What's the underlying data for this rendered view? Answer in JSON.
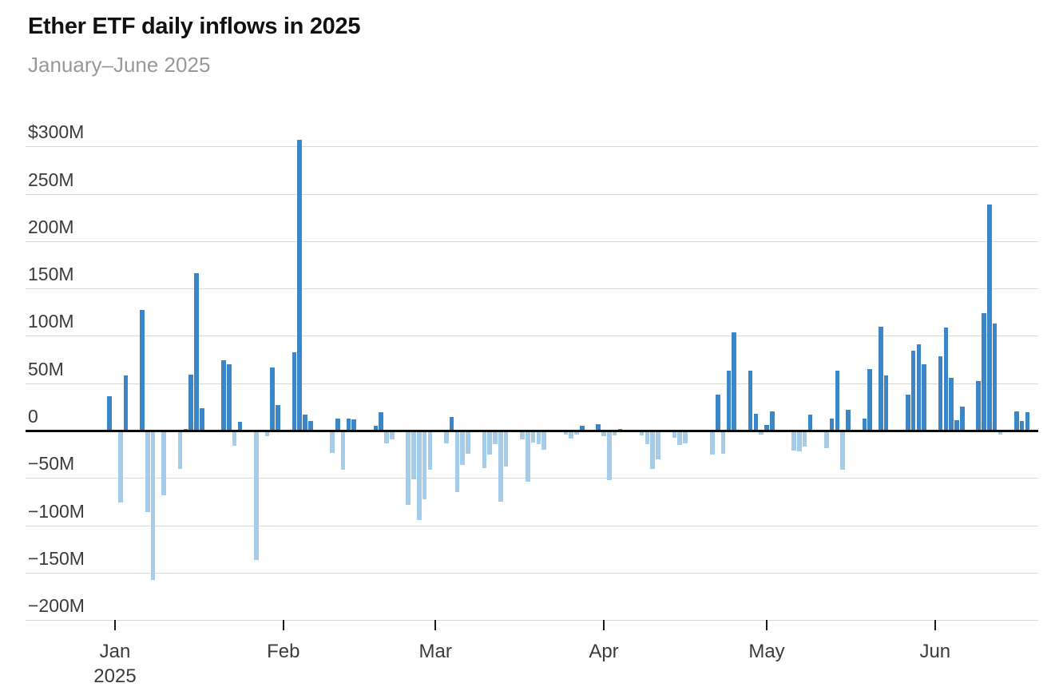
{
  "header": {
    "title": "Ether ETF daily inflows in 2025",
    "subtitle": "January–June 2025"
  },
  "chart_data": {
    "type": "bar",
    "title": "Ether ETF daily inflows in 2025",
    "subtitle": "January–June 2025",
    "unit": "millions of US dollars per day",
    "ylim": [
      -200,
      300
    ],
    "grid": "horizontal",
    "legend": "none",
    "colors": {
      "positive_bar": "#3b86c6",
      "negative_bar": "#a5cdea",
      "zero_line": "#0a0a0a",
      "gridline": "#d9d9d9",
      "title_text": "#111111",
      "subtitle_text": "#989898",
      "axis_text": "#3b3b3b"
    },
    "y_axis": {
      "ticks": [
        {
          "value": 300,
          "label": "$300M"
        },
        {
          "value": 250,
          "label": "250M"
        },
        {
          "value": 200,
          "label": "200M"
        },
        {
          "value": 150,
          "label": "150M"
        },
        {
          "value": 100,
          "label": "100M"
        },
        {
          "value": 50,
          "label": "50M"
        },
        {
          "value": 0,
          "label": "0"
        },
        {
          "value": -50,
          "label": "−50M"
        },
        {
          "value": -100,
          "label": "−100M"
        },
        {
          "value": -150,
          "label": "−150M"
        },
        {
          "value": -200,
          "label": "−200M"
        }
      ]
    },
    "x_axis": {
      "ticks": [
        {
          "date": "2025-01-01",
          "label": "Jan",
          "sublabel": "2025"
        },
        {
          "date": "2025-02-01",
          "label": "Feb",
          "sublabel": ""
        },
        {
          "date": "2025-03-01",
          "label": "Mar",
          "sublabel": ""
        },
        {
          "date": "2025-04-01",
          "label": "Apr",
          "sublabel": ""
        },
        {
          "date": "2025-05-01",
          "label": "May",
          "sublabel": ""
        },
        {
          "date": "2025-06-01",
          "label": "Jun",
          "sublabel": ""
        }
      ]
    },
    "columns": [
      "date",
      "value_millions_usd"
    ],
    "points": [
      [
        "2024-12-31",
        36
      ],
      [
        "2025-01-02",
        -75
      ],
      [
        "2025-01-03",
        58
      ],
      [
        "2025-01-06",
        127
      ],
      [
        "2025-01-07",
        -85
      ],
      [
        "2025-01-08",
        -156
      ],
      [
        "2025-01-10",
        -67
      ],
      [
        "2025-01-13",
        -39
      ],
      [
        "2025-01-14",
        2
      ],
      [
        "2025-01-15",
        59
      ],
      [
        "2025-01-16",
        166
      ],
      [
        "2025-01-17",
        24
      ],
      [
        "2025-01-21",
        74
      ],
      [
        "2025-01-22",
        70
      ],
      [
        "2025-01-23",
        -15
      ],
      [
        "2025-01-24",
        9
      ],
      [
        "2025-01-27",
        -135
      ],
      [
        "2025-01-29",
        -5
      ],
      [
        "2025-01-30",
        67
      ],
      [
        "2025-01-31",
        27
      ],
      [
        "2025-02-03",
        83
      ],
      [
        "2025-02-04",
        307
      ],
      [
        "2025-02-05",
        17
      ],
      [
        "2025-02-06",
        10
      ],
      [
        "2025-02-10",
        -22
      ],
      [
        "2025-02-11",
        13
      ],
      [
        "2025-02-12",
        -40
      ],
      [
        "2025-02-13",
        13
      ],
      [
        "2025-02-14",
        12
      ],
      [
        "2025-02-18",
        5
      ],
      [
        "2025-02-19",
        19
      ],
      [
        "2025-02-20",
        -12
      ],
      [
        "2025-02-21",
        -8
      ],
      [
        "2025-02-24",
        -77
      ],
      [
        "2025-02-25",
        -50
      ],
      [
        "2025-02-26",
        -93
      ],
      [
        "2025-02-27",
        -71
      ],
      [
        "2025-02-28",
        -40
      ],
      [
        "2025-03-03",
        -12
      ],
      [
        "2025-03-04",
        14
      ],
      [
        "2025-03-05",
        -64
      ],
      [
        "2025-03-06",
        -35
      ],
      [
        "2025-03-07",
        -23
      ],
      [
        "2025-03-10",
        -38
      ],
      [
        "2025-03-11",
        -24
      ],
      [
        "2025-03-12",
        -13
      ],
      [
        "2025-03-13",
        -74
      ],
      [
        "2025-03-14",
        -37
      ],
      [
        "2025-03-17",
        -8
      ],
      [
        "2025-03-18",
        -53
      ],
      [
        "2025-03-19",
        -11
      ],
      [
        "2025-03-20",
        -13
      ],
      [
        "2025-03-21",
        -19
      ],
      [
        "2025-03-25",
        -3
      ],
      [
        "2025-03-26",
        -7
      ],
      [
        "2025-03-27",
        -3
      ],
      [
        "2025-03-28",
        5
      ],
      [
        "2025-03-31",
        7
      ],
      [
        "2025-04-01",
        -5
      ],
      [
        "2025-04-02",
        -51
      ],
      [
        "2025-04-03",
        -4
      ],
      [
        "2025-04-04",
        2
      ],
      [
        "2025-04-08",
        -4
      ],
      [
        "2025-04-09",
        -13
      ],
      [
        "2025-04-10",
        -39
      ],
      [
        "2025-04-11",
        -29
      ],
      [
        "2025-04-14",
        -6
      ],
      [
        "2025-04-15",
        -14
      ],
      [
        "2025-04-16",
        -12
      ],
      [
        "2025-04-21",
        -24
      ],
      [
        "2025-04-22",
        38
      ],
      [
        "2025-04-23",
        -23
      ],
      [
        "2025-04-24",
        63
      ],
      [
        "2025-04-25",
        104
      ],
      [
        "2025-04-28",
        63
      ],
      [
        "2025-04-29",
        18
      ],
      [
        "2025-04-30",
        -3
      ],
      [
        "2025-05-01",
        6
      ],
      [
        "2025-05-02",
        20
      ],
      [
        "2025-05-06",
        -20
      ],
      [
        "2025-05-07",
        -21
      ],
      [
        "2025-05-08",
        -16
      ],
      [
        "2025-05-09",
        17
      ],
      [
        "2025-05-12",
        -17
      ],
      [
        "2025-05-13",
        13
      ],
      [
        "2025-05-14",
        63
      ],
      [
        "2025-05-15",
        -40
      ],
      [
        "2025-05-16",
        22
      ],
      [
        "2025-05-19",
        13
      ],
      [
        "2025-05-20",
        65
      ],
      [
        "2025-05-22",
        110
      ],
      [
        "2025-05-23",
        58
      ],
      [
        "2025-05-27",
        38
      ],
      [
        "2025-05-28",
        84
      ],
      [
        "2025-05-29",
        91
      ],
      [
        "2025-05-30",
        70
      ],
      [
        "2025-06-02",
        78
      ],
      [
        "2025-06-03",
        109
      ],
      [
        "2025-06-04",
        56
      ],
      [
        "2025-06-05",
        11
      ],
      [
        "2025-06-06",
        25
      ],
      [
        "2025-06-09",
        52
      ],
      [
        "2025-06-10",
        124
      ],
      [
        "2025-06-11",
        239
      ],
      [
        "2025-06-12",
        113
      ],
      [
        "2025-06-13",
        -3
      ],
      [
        "2025-06-16",
        20
      ],
      [
        "2025-06-17",
        10
      ],
      [
        "2025-06-18",
        19
      ]
    ]
  }
}
